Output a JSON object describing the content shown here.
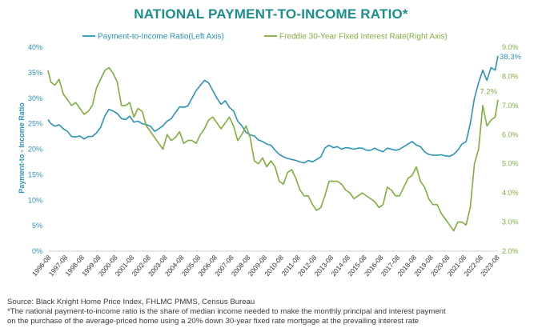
{
  "page_title": "NATIONAL PAYMENT-TO-INCOME RATIO*",
  "source_line": "Source: Black Knight Home Price Index, FHLMC PMMS, Census Bureau",
  "footnote_line1": "*The national payment-to-income ratio is the share of median income needed to make the monthly principal and interest payment",
  "footnote_line2": "on the purchase of the average-priced home using a 20% down 30-year fixed rate mortgage at the prevailing interest rate",
  "colors": {
    "title": "#1b8f8c",
    "left_series": "#2b93b9",
    "right_series": "#7fae3e",
    "axis_line": "#cfcfcf"
  },
  "chart_data": {
    "type": "line",
    "title": "NATIONAL PAYMENT-TO-INCOME RATIO*",
    "ylabel": "Payment-to - Income Ratio",
    "y_left": {
      "min": 0,
      "max": 40,
      "ticks": [
        0,
        5,
        10,
        15,
        20,
        25,
        30,
        35,
        40
      ],
      "tick_labels": [
        "0%",
        "5%",
        "10%",
        "15%",
        "20%",
        "25%",
        "30%",
        "35%",
        "40%"
      ]
    },
    "y_right": {
      "min": 2.0,
      "max": 9.0,
      "ticks": [
        2,
        3,
        4,
        5,
        6,
        7,
        8,
        9
      ],
      "tick_labels": [
        "2.0%",
        "3.0%",
        "4.0%",
        "5.0%",
        "6.0%",
        "7.0%",
        "8.0%",
        "9.0%"
      ]
    },
    "x_range": [
      1996.583,
      2023.667
    ],
    "x_ticks": [
      "1996-08",
      "1997-08",
      "1998-08",
      "1999-08",
      "2000-08",
      "2001-08",
      "2002-08",
      "2003-08",
      "2004-08",
      "2005-08",
      "2006-08",
      "2007-08",
      "2008-08",
      "2009-08",
      "2010-08",
      "2011-08",
      "2012-08",
      "2013-08",
      "2014-08",
      "2015-08",
      "2016-08",
      "2017-08",
      "2018-08",
      "2019-08",
      "2020-08",
      "2021-08",
      "2022-08",
      "2023-08"
    ],
    "legend_position": "top",
    "grid": false,
    "series": [
      {
        "name": "Payment-to-Income Ratio(Left Axis)",
        "axis": "left",
        "end_label": "38.3%",
        "x": [
          1996.583,
          1996.75,
          1997.0,
          1997.25,
          1997.5,
          1997.75,
          1998.0,
          1998.25,
          1998.5,
          1998.75,
          1999.0,
          1999.25,
          1999.5,
          1999.75,
          2000.0,
          2000.25,
          2000.5,
          2000.75,
          2001.0,
          2001.25,
          2001.5,
          2001.75,
          2002.0,
          2002.25,
          2002.5,
          2002.75,
          2003.0,
          2003.25,
          2003.5,
          2003.75,
          2004.0,
          2004.25,
          2004.5,
          2004.75,
          2005.0,
          2005.25,
          2005.5,
          2005.75,
          2006.0,
          2006.25,
          2006.5,
          2006.75,
          2007.0,
          2007.25,
          2007.5,
          2007.75,
          2008.0,
          2008.25,
          2008.5,
          2008.75,
          2009.0,
          2009.25,
          2009.5,
          2009.75,
          2010.0,
          2010.25,
          2010.5,
          2010.75,
          2011.0,
          2011.25,
          2011.5,
          2011.75,
          2012.0,
          2012.25,
          2012.5,
          2012.75,
          2013.0,
          2013.25,
          2013.5,
          2013.75,
          2014.0,
          2014.25,
          2014.5,
          2014.75,
          2015.0,
          2015.25,
          2015.5,
          2015.75,
          2016.0,
          2016.25,
          2016.5,
          2016.75,
          2017.0,
          2017.25,
          2017.5,
          2017.75,
          2018.0,
          2018.25,
          2018.5,
          2018.75,
          2019.0,
          2019.25,
          2019.5,
          2019.75,
          2020.0,
          2020.25,
          2020.5,
          2020.75,
          2021.0,
          2021.25,
          2021.5,
          2021.75,
          2022.0,
          2022.25,
          2022.5,
          2022.75,
          2023.0,
          2023.25,
          2023.5,
          2023.667
        ],
        "values": [
          25.8,
          25.0,
          24.5,
          24.8,
          24.0,
          23.5,
          22.5,
          22.4,
          22.6,
          22.0,
          22.5,
          22.5,
          23.2,
          24.3,
          26.5,
          27.8,
          27.5,
          27.0,
          26.0,
          25.8,
          26.5,
          25.3,
          25.5,
          25.0,
          24.8,
          24.5,
          23.5,
          24.0,
          24.6,
          25.5,
          26.0,
          27.2,
          28.3,
          28.2,
          28.5,
          30.0,
          31.5,
          32.5,
          33.5,
          33.0,
          31.5,
          30.0,
          28.8,
          29.5,
          28.2,
          27.5,
          25.5,
          24.6,
          23.3,
          22.8,
          22.6,
          21.8,
          21.5,
          21.0,
          20.8,
          19.8,
          19.0,
          18.5,
          18.2,
          18.0,
          17.8,
          17.5,
          17.3,
          17.8,
          17.5,
          18.0,
          18.5,
          20.2,
          20.8,
          20.3,
          20.5,
          20.0,
          20.3,
          20.2,
          20.0,
          20.2,
          20.2,
          19.8,
          19.8,
          20.2,
          19.8,
          19.5,
          20.2,
          20.0,
          19.8,
          20.0,
          20.5,
          21.0,
          21.5,
          20.8,
          20.5,
          19.5,
          19.0,
          18.8,
          18.8,
          18.9,
          18.7,
          18.6,
          19.0,
          19.8,
          21.0,
          21.5,
          25.0,
          30.0,
          33.0,
          35.5,
          33.5,
          36.0,
          35.5,
          38.3
        ]
      },
      {
        "name": "Freddie 30-Year Fixed Interest Rate(Right Axis)",
        "axis": "right",
        "end_label": "7.2%",
        "x": [
          1996.583,
          1996.75,
          1997.0,
          1997.25,
          1997.5,
          1997.75,
          1998.0,
          1998.25,
          1998.5,
          1998.75,
          1999.0,
          1999.25,
          1999.5,
          1999.75,
          2000.0,
          2000.25,
          2000.5,
          2000.75,
          2001.0,
          2001.25,
          2001.5,
          2001.75,
          2002.0,
          2002.25,
          2002.5,
          2002.75,
          2003.0,
          2003.25,
          2003.5,
          2003.75,
          2004.0,
          2004.25,
          2004.5,
          2004.75,
          2005.0,
          2005.25,
          2005.5,
          2005.75,
          2006.0,
          2006.25,
          2006.5,
          2006.75,
          2007.0,
          2007.25,
          2007.5,
          2007.75,
          2008.0,
          2008.25,
          2008.5,
          2008.75,
          2009.0,
          2009.25,
          2009.5,
          2009.75,
          2010.0,
          2010.25,
          2010.5,
          2010.75,
          2011.0,
          2011.25,
          2011.5,
          2011.75,
          2012.0,
          2012.25,
          2012.5,
          2012.75,
          2013.0,
          2013.25,
          2013.5,
          2013.75,
          2014.0,
          2014.25,
          2014.5,
          2014.75,
          2015.0,
          2015.25,
          2015.5,
          2015.75,
          2016.0,
          2016.25,
          2016.5,
          2016.75,
          2017.0,
          2017.25,
          2017.5,
          2017.75,
          2018.0,
          2018.25,
          2018.5,
          2018.75,
          2019.0,
          2019.25,
          2019.5,
          2019.75,
          2020.0,
          2020.25,
          2020.5,
          2020.75,
          2021.0,
          2021.25,
          2021.5,
          2021.75,
          2022.0,
          2022.25,
          2022.5,
          2022.75,
          2023.0,
          2023.25,
          2023.5,
          2023.667
        ],
        "values": [
          8.2,
          7.8,
          7.7,
          7.9,
          7.4,
          7.2,
          7.0,
          7.1,
          6.9,
          6.7,
          6.8,
          7.0,
          7.6,
          7.9,
          8.2,
          8.3,
          8.1,
          7.8,
          7.0,
          7.0,
          7.1,
          6.6,
          6.9,
          6.8,
          6.3,
          6.1,
          5.9,
          5.7,
          5.5,
          6.0,
          5.8,
          5.9,
          6.1,
          5.7,
          5.8,
          5.8,
          5.7,
          6.0,
          6.2,
          6.5,
          6.6,
          6.4,
          6.2,
          6.4,
          6.6,
          6.3,
          5.8,
          6.0,
          6.3,
          5.9,
          5.1,
          5.0,
          5.2,
          4.9,
          5.1,
          4.9,
          4.4,
          4.3,
          4.7,
          4.8,
          4.5,
          4.1,
          3.9,
          3.9,
          3.6,
          3.4,
          3.5,
          3.9,
          4.4,
          4.4,
          4.4,
          4.3,
          4.1,
          4.0,
          3.8,
          3.9,
          4.0,
          3.9,
          3.8,
          3.7,
          3.5,
          3.6,
          4.2,
          4.1,
          3.9,
          3.9,
          4.2,
          4.5,
          4.6,
          4.9,
          4.4,
          4.2,
          3.8,
          3.6,
          3.6,
          3.3,
          3.1,
          2.9,
          2.7,
          3.0,
          3.0,
          2.9,
          3.5,
          5.0,
          5.5,
          7.0,
          6.3,
          6.5,
          6.6,
          7.2
        ]
      }
    ]
  }
}
